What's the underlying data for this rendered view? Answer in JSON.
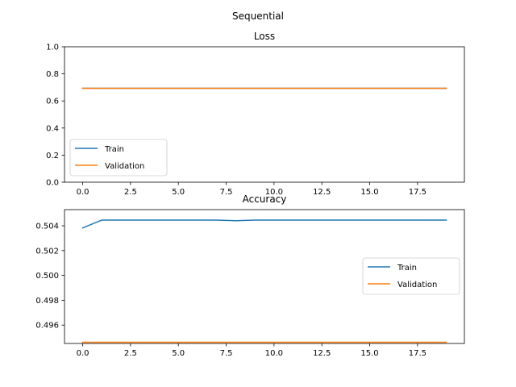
{
  "figure": {
    "suptitle": "Sequential"
  },
  "chart_data": [
    {
      "type": "line",
      "title": "Loss",
      "xlabel": "",
      "ylabel": "",
      "xlim": [
        -0.95,
        19.95
      ],
      "ylim": [
        0,
        1.0
      ],
      "xticks": [
        0,
        2.5,
        5,
        7.5,
        10,
        12.5,
        15,
        17.5
      ],
      "xtick_labels": [
        "0.0",
        "2.5",
        "5.0",
        "7.5",
        "10.0",
        "12.5",
        "15.0",
        "17.5"
      ],
      "yticks": [
        0,
        0.2,
        0.4,
        0.6,
        0.8,
        1.0
      ],
      "ytick_labels": [
        "0.0",
        "0.2",
        "0.4",
        "0.6",
        "0.8",
        "1.0"
      ],
      "grid": false,
      "legend": "lower-left",
      "x": [
        0,
        1,
        2,
        3,
        4,
        5,
        6,
        7,
        8,
        9,
        10,
        11,
        12,
        13,
        14,
        15,
        16,
        17,
        18,
        19
      ],
      "series": [
        {
          "name": "Train",
          "color": "#1f77b4",
          "values": [
            0.6932,
            0.6931,
            0.6931,
            0.6931,
            0.6931,
            0.6931,
            0.6931,
            0.6931,
            0.6931,
            0.6931,
            0.6931,
            0.6931,
            0.6931,
            0.6931,
            0.6931,
            0.6931,
            0.6931,
            0.6931,
            0.6931,
            0.6931
          ]
        },
        {
          "name": "Validation",
          "color": "#ff7f0e",
          "values": [
            0.6932,
            0.6932,
            0.6932,
            0.6932,
            0.6932,
            0.6932,
            0.6932,
            0.6932,
            0.6932,
            0.6932,
            0.6932,
            0.6932,
            0.6932,
            0.6932,
            0.6932,
            0.6932,
            0.6932,
            0.6932,
            0.6932,
            0.6932
          ]
        }
      ]
    },
    {
      "type": "line",
      "title": "Accuracy",
      "xlabel": "",
      "ylabel": "",
      "xlim": [
        -0.95,
        19.95
      ],
      "ylim": [
        0.49452,
        0.5053
      ],
      "xticks": [
        0,
        2.5,
        5,
        7.5,
        10,
        12.5,
        15,
        17.5
      ],
      "xtick_labels": [
        "0.0",
        "2.5",
        "5.0",
        "7.5",
        "10.0",
        "12.5",
        "15.0",
        "17.5"
      ],
      "yticks": [
        0.496,
        0.498,
        0.5,
        0.502,
        0.504
      ],
      "ytick_labels": [
        "0.496",
        "0.498",
        "0.500",
        "0.502",
        "0.504"
      ],
      "grid": false,
      "legend": "center-right",
      "x": [
        0,
        1,
        2,
        3,
        4,
        5,
        6,
        7,
        8,
        9,
        10,
        11,
        12,
        13,
        14,
        15,
        16,
        17,
        18,
        19
      ],
      "series": [
        {
          "name": "Train",
          "color": "#1f77b4",
          "values": [
            0.50383,
            0.50446,
            0.50446,
            0.50446,
            0.50446,
            0.50446,
            0.50446,
            0.50446,
            0.50441,
            0.50446,
            0.50446,
            0.50446,
            0.50446,
            0.50446,
            0.50446,
            0.50446,
            0.50446,
            0.50446,
            0.50446,
            0.50446
          ]
        },
        {
          "name": "Validation",
          "color": "#ff7f0e",
          "values": [
            0.49462,
            0.49462,
            0.49462,
            0.49462,
            0.49462,
            0.49462,
            0.49462,
            0.49462,
            0.49462,
            0.49462,
            0.49462,
            0.49462,
            0.49462,
            0.49462,
            0.49462,
            0.49462,
            0.49462,
            0.49462,
            0.49462,
            0.49462
          ]
        }
      ]
    }
  ]
}
